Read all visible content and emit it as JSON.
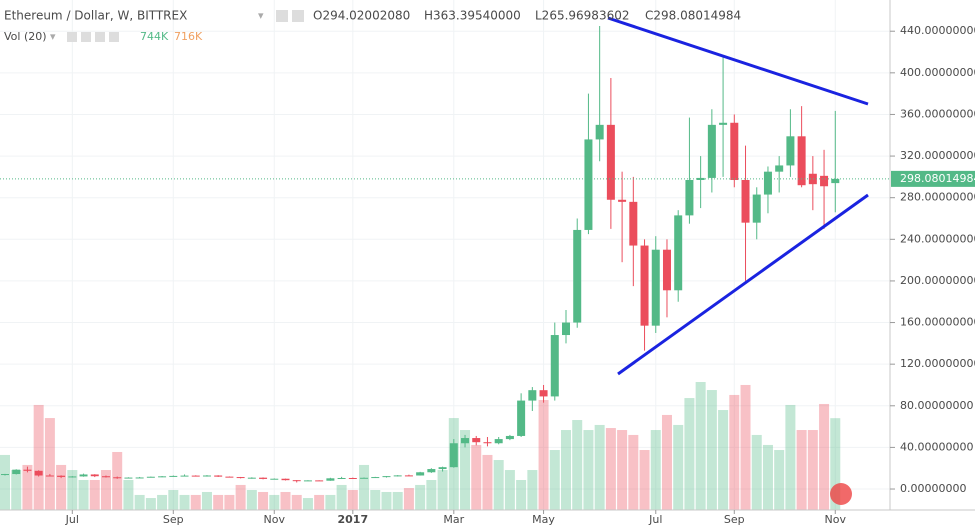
{
  "chart_data": {
    "type": "candlestick",
    "title": "Ethereum / Dollar, W, BITTREX",
    "ohlc_labels": [
      "O294.02002080",
      "H363.39540000",
      "L265.96983602",
      "C298.08014984"
    ],
    "volume_title": "Vol (20)",
    "volume_labels": [
      "744K",
      "716K"
    ],
    "open": [
      13.8,
      14.4,
      18.6,
      17.5,
      13.0,
      12.8,
      11.6,
      12.1,
      14.0,
      12.3,
      11.3,
      10.9,
      11.0,
      11.1,
      11.8,
      12.2,
      12.6,
      12.9,
      12.4,
      13.0,
      11.9,
      11.5,
      10.6,
      10.9,
      9.7,
      9.9,
      8.5,
      7.9,
      8.3,
      8.0,
      10.3,
      10.6,
      10.5,
      10.8,
      11.5,
      12.4,
      13.1,
      13.0,
      16.1,
      19.2,
      21.0,
      44,
      49,
      45,
      44,
      48,
      51,
      85,
      95,
      89,
      148,
      160,
      249,
      336,
      350,
      278,
      276,
      234,
      157,
      230,
      191,
      263,
      297,
      299,
      350,
      352,
      297,
      256,
      283,
      305,
      311,
      339,
      303,
      301,
      294.0200208
    ],
    "high": [
      14.6,
      19.0,
      21.5,
      18.0,
      14.5,
      13.2,
      12.4,
      14.8,
      14.3,
      13.0,
      12.0,
      11.3,
      11.6,
      12.0,
      12.5,
      13.0,
      14.0,
      13.2,
      13.4,
      13.3,
      12.1,
      11.6,
      11.3,
      11.2,
      10.2,
      10.0,
      8.6,
      8.5,
      8.4,
      10.8,
      11.7,
      11.0,
      11.1,
      11.7,
      12.5,
      13.4,
      13.8,
      16.5,
      20.0,
      21.5,
      48,
      52,
      51,
      50,
      50,
      52,
      92,
      98,
      100,
      160,
      172,
      260,
      380,
      445,
      395,
      305,
      300,
      240,
      243,
      240,
      268,
      357,
      320,
      365,
      415,
      360,
      330,
      290,
      310,
      320,
      365,
      368,
      320,
      326,
      363.3954
    ],
    "low": [
      13.0,
      14.0,
      16.0,
      12.0,
      12.3,
      10.5,
      11.0,
      11.8,
      11.5,
      11.0,
      9.8,
      10.5,
      10.6,
      11.0,
      11.4,
      11.8,
      12.3,
      12.0,
      11.9,
      11.6,
      11.2,
      10.2,
      9.9,
      9.3,
      9.2,
      8.2,
      6.3,
      7.6,
      7.7,
      7.9,
      9.6,
      9.6,
      10.2,
      10.6,
      11.0,
      12.0,
      12.5,
      12.9,
      15.5,
      16.8,
      20.5,
      40,
      42,
      41,
      43,
      47,
      50,
      75,
      83,
      85,
      140,
      155,
      245,
      315,
      250,
      218,
      195,
      133,
      150,
      165,
      180,
      255,
      270,
      285,
      300,
      290,
      200,
      240,
      265,
      285,
      300,
      290,
      268,
      250,
      265.96983602
    ],
    "close": [
      14.4,
      18.6,
      17.5,
      13.0,
      12.8,
      11.6,
      12.1,
      14.0,
      12.3,
      11.3,
      10.9,
      11.0,
      11.1,
      11.8,
      12.2,
      12.6,
      12.9,
      12.4,
      13.0,
      11.9,
      11.5,
      10.6,
      10.9,
      9.7,
      9.9,
      8.5,
      7.9,
      8.3,
      8.0,
      10.3,
      10.6,
      10.5,
      10.8,
      11.5,
      12.4,
      13.1,
      13.0,
      16.1,
      19.2,
      21.0,
      44,
      49,
      45,
      44,
      48,
      51,
      85,
      95,
      89,
      148,
      160,
      249,
      336,
      350,
      278,
      276,
      234,
      157,
      230,
      191,
      263,
      297,
      299,
      350,
      352,
      297,
      256,
      283,
      305,
      311,
      339,
      292,
      293,
      291,
      298.08014984
    ],
    "volume": [
      446,
      324,
      365,
      851,
      745,
      365,
      324,
      243,
      243,
      324,
      470,
      243,
      122,
      97,
      122,
      162,
      122,
      122,
      146,
      122,
      122,
      203,
      162,
      146,
      122,
      146,
      122,
      97,
      122,
      122,
      203,
      162,
      365,
      162,
      146,
      146,
      178,
      203,
      243,
      324,
      745,
      648,
      527,
      446,
      405,
      324,
      243,
      324,
      891,
      486,
      648,
      729,
      648,
      689,
      664,
      648,
      608,
      486,
      648,
      770,
      689,
      907,
      1037,
      972,
      810,
      932,
      1013,
      608,
      527,
      486,
      851,
      648,
      648,
      859,
      744
    ],
    "up_color": "#53b987",
    "down_color": "#eb4d5c",
    "ylim": [
      -36.5,
      470
    ],
    "yticks": [
      {
        "value": 0,
        "label": "0.00000000"
      },
      {
        "value": 40,
        "label": "40.00000000"
      },
      {
        "value": 80,
        "label": "80.00000000"
      },
      {
        "value": 120,
        "label": "120.00000000"
      },
      {
        "value": 160,
        "label": "160.00000000"
      },
      {
        "value": 200,
        "label": "200.00000000"
      },
      {
        "value": 240,
        "label": "240.00000000"
      },
      {
        "value": 280,
        "label": "280.00000000"
      },
      {
        "value": 320,
        "label": "320.00000000"
      },
      {
        "value": 360,
        "label": "360.00000000"
      },
      {
        "value": 400,
        "label": "400.00000000"
      },
      {
        "value": 440,
        "label": "440.00000000"
      }
    ],
    "xticks": [
      {
        "value": 6,
        "label": "Jul"
      },
      {
        "value": 15,
        "label": "Sep"
      },
      {
        "value": 24,
        "label": "Nov"
      },
      {
        "value": 31,
        "label": "2017"
      },
      {
        "value": 40,
        "label": "Mar"
      },
      {
        "value": 48,
        "label": "May"
      },
      {
        "value": 58,
        "label": "Jul"
      },
      {
        "value": 65,
        "label": "Sep"
      },
      {
        "value": 74,
        "label": "Nov"
      }
    ],
    "grid": true
  }
}
